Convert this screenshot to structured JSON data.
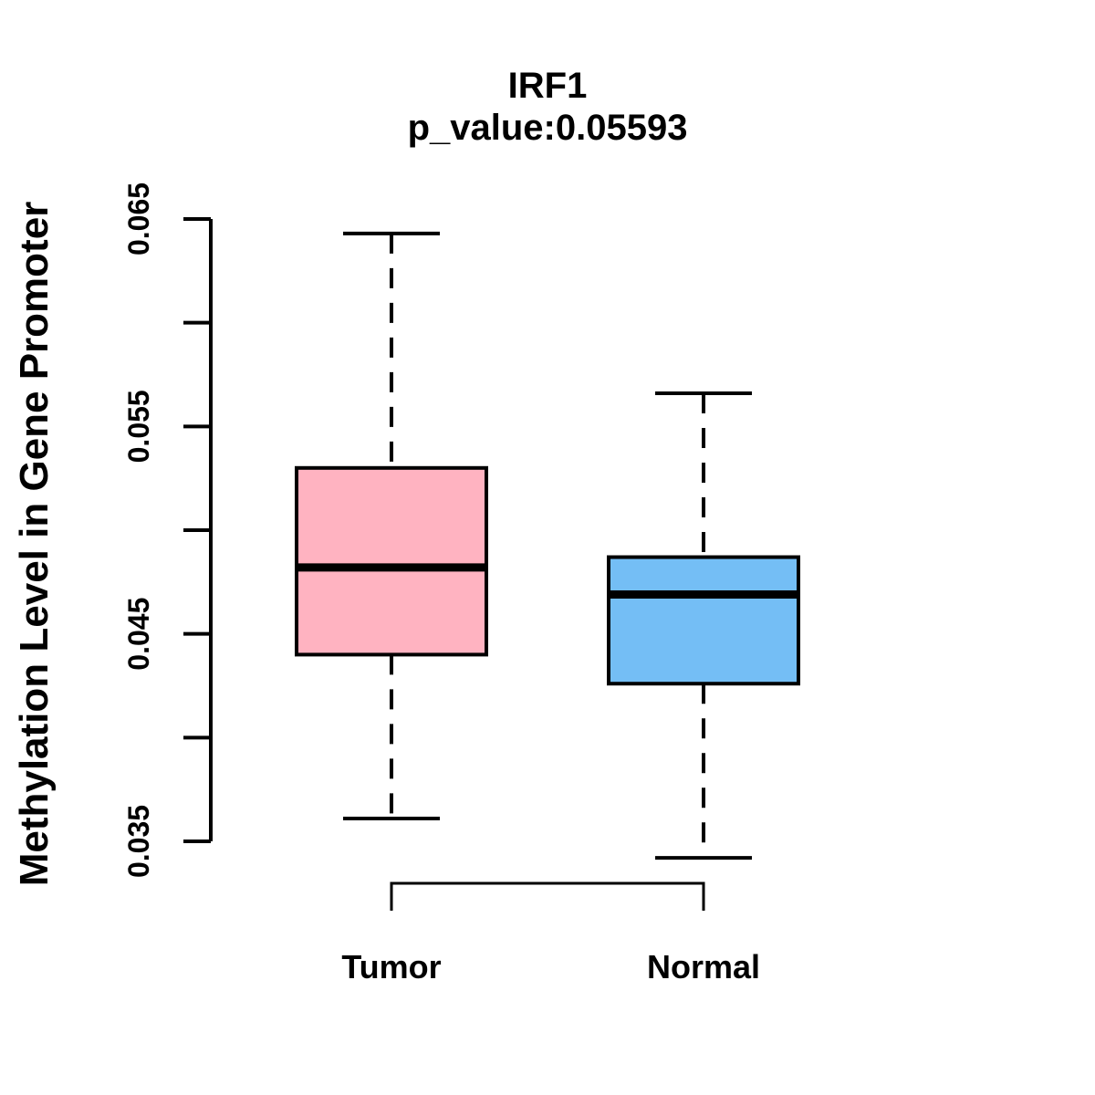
{
  "chart_data": {
    "type": "boxplot",
    "title": "IRF1",
    "subtitle": "p_value:0.05593",
    "ylabel": "Methylation Level in Gene Promoter",
    "xlabel": "",
    "ylim": [
      0.035,
      0.065
    ],
    "grid": false,
    "background_color": "#FFFFFF",
    "stroke_color": "#000000",
    "yticks": [
      {
        "value": 0.035,
        "label": "0.035"
      },
      {
        "value": 0.04,
        "label": ""
      },
      {
        "value": 0.045,
        "label": "0.045"
      },
      {
        "value": 0.05,
        "label": ""
      },
      {
        "value": 0.055,
        "label": "0.055"
      },
      {
        "value": 0.06,
        "label": ""
      },
      {
        "value": 0.065,
        "label": "0.065"
      }
    ],
    "groups": [
      {
        "label": "Tumor",
        "fill_color": "#FFB3C1",
        "whisker_low": 0.0361,
        "q1": 0.044,
        "median": 0.0482,
        "q3": 0.053,
        "whisker_high": 0.0643
      },
      {
        "label": "Normal",
        "fill_color": "#74BEF5",
        "whisker_low": 0.0342,
        "q1": 0.0426,
        "median": 0.0469,
        "q3": 0.0487,
        "whisker_high": 0.0566
      }
    ]
  }
}
